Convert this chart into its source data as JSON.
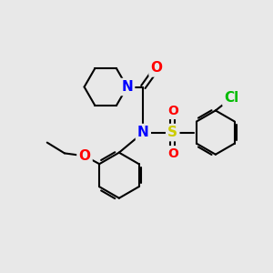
{
  "bg_color": "#e8e8e8",
  "bond_color": "#000000",
  "bond_width": 1.5,
  "atom_colors": {
    "N": "#0000ff",
    "O": "#ff0000",
    "S": "#cccc00",
    "Cl": "#00bb00",
    "C": "#000000"
  },
  "font_size_atom": 11,
  "fig_width": 3.0,
  "fig_height": 3.0,
  "dpi": 100,
  "xlim": [
    0,
    10
  ],
  "ylim": [
    0,
    10
  ]
}
